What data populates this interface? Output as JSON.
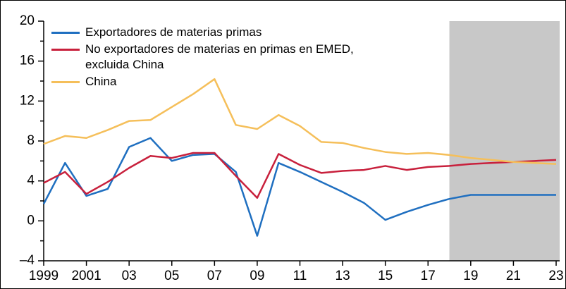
{
  "chart_data": {
    "type": "line",
    "x": [
      1999,
      2000,
      2001,
      2002,
      2003,
      2004,
      2005,
      2006,
      2007,
      2008,
      2009,
      2010,
      2011,
      2012,
      2013,
      2014,
      2015,
      2016,
      2017,
      2018,
      2019,
      2020,
      2021,
      2022,
      2023
    ],
    "series": [
      {
        "name": "Exportadores de materias primas",
        "color": "#1f6fc0",
        "values": [
          1.7,
          5.8,
          2.5,
          3.2,
          7.4,
          8.3,
          6.0,
          6.6,
          6.7,
          4.9,
          -1.5,
          5.8,
          4.9,
          3.9,
          2.9,
          1.8,
          0.1,
          0.9,
          1.6,
          2.2,
          2.6,
          2.6,
          2.6,
          2.6,
          2.6
        ]
      },
      {
        "name": "No exportadores de materias en primas en EMED,\nexcluida China",
        "color": "#c8203c",
        "values": [
          3.8,
          4.9,
          2.7,
          3.9,
          5.3,
          6.5,
          6.3,
          6.8,
          6.8,
          4.5,
          2.3,
          6.7,
          5.6,
          4.8,
          5.0,
          5.1,
          5.5,
          5.1,
          5.4,
          5.5,
          5.7,
          5.8,
          5.9,
          6.0,
          6.1
        ]
      },
      {
        "name": "China",
        "color": "#f5bf5a",
        "values": [
          7.7,
          8.5,
          8.3,
          9.1,
          10.0,
          10.1,
          11.4,
          12.7,
          14.2,
          9.6,
          9.2,
          10.6,
          9.5,
          7.9,
          7.8,
          7.3,
          6.9,
          6.7,
          6.8,
          6.6,
          6.3,
          6.1,
          5.9,
          5.8,
          5.7
        ]
      }
    ],
    "xlim": [
      1999,
      2023
    ],
    "xticks": [
      {
        "value": 1999,
        "label": "1999"
      },
      {
        "value": 2001,
        "label": "2001"
      },
      {
        "value": 2003,
        "label": "03"
      },
      {
        "value": 2005,
        "label": "05"
      },
      {
        "value": 2007,
        "label": "07"
      },
      {
        "value": 2009,
        "label": "09"
      },
      {
        "value": 2011,
        "label": "11"
      },
      {
        "value": 2013,
        "label": "13"
      },
      {
        "value": 2015,
        "label": "15"
      },
      {
        "value": 2017,
        "label": "17"
      },
      {
        "value": 2019,
        "label": "19"
      },
      {
        "value": 2021,
        "label": "21"
      },
      {
        "value": 2023,
        "label": "23"
      }
    ],
    "ylim": [
      -4,
      20
    ],
    "yticks": [
      {
        "value": -4,
        "label": "–4"
      },
      0,
      4,
      8,
      12,
      16,
      20
    ],
    "yminorticks": [
      -2,
      2,
      6,
      10,
      14,
      18
    ],
    "shaded_xlim": [
      2018,
      2023
    ],
    "shade_color": "#c8c8c8",
    "legend": "upper-left"
  }
}
